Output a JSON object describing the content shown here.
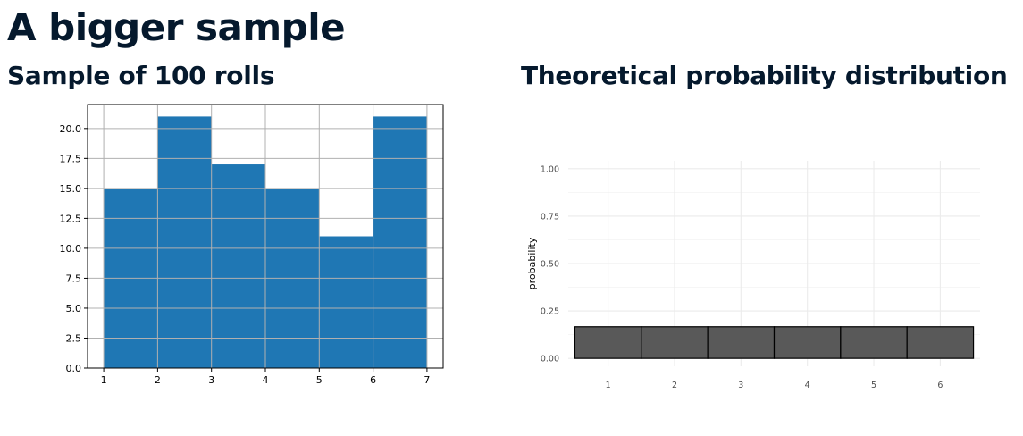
{
  "page": {
    "title": "A bigger sample",
    "left_subtitle": "Sample of 100 rolls",
    "right_subtitle": "Theoretical probability distribution"
  },
  "chart_data": [
    {
      "type": "bar",
      "title": "",
      "xlabel": "",
      "ylabel": "",
      "bin_edges": [
        1,
        2,
        3,
        4,
        5,
        6,
        7
      ],
      "values": [
        15,
        21,
        17,
        15,
        11,
        21
      ],
      "xlim": [
        0.7,
        7.3
      ],
      "ylim": [
        0,
        22
      ],
      "xticks": [
        "1",
        "2",
        "3",
        "4",
        "5",
        "6",
        "7"
      ],
      "yticks": [
        "0.0",
        "2.5",
        "5.0",
        "7.5",
        "10.0",
        "12.5",
        "15.0",
        "17.5",
        "20.0"
      ],
      "grid": true,
      "colors": {
        "bar": "#1f77b4",
        "grid": "#b0b0b0",
        "axis": "#000000"
      }
    },
    {
      "type": "bar",
      "title": "",
      "xlabel": "",
      "ylabel": "probability",
      "categories": [
        "1",
        "2",
        "3",
        "4",
        "5",
        "6"
      ],
      "values": [
        0.1667,
        0.1667,
        0.1667,
        0.1667,
        0.1667,
        0.1667
      ],
      "ylim": [
        0,
        1.0
      ],
      "yticks": [
        "0.00",
        "0.25",
        "0.50",
        "0.75",
        "1.00"
      ],
      "grid": true,
      "colors": {
        "bar": "#595959",
        "bar_edge": "#000000",
        "grid": "#ebebeb",
        "tick_text": "#4d4d4d"
      }
    }
  ]
}
